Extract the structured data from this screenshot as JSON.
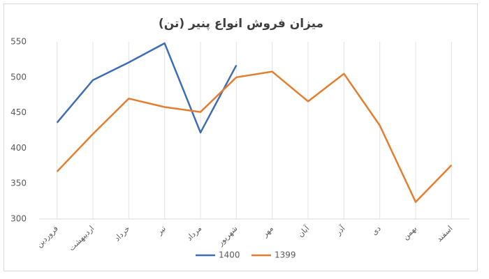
{
  "chart_data": {
    "type": "line",
    "title": "میزان فروش انواع پنیر (تن)",
    "categories": [
      "فروردین",
      "اردیبهشت",
      "خرداد",
      "تیر",
      "مرداد",
      "شهریور",
      "مهر",
      "آبان",
      "آذر",
      "دی",
      "بهمن",
      "اسفند"
    ],
    "series": [
      {
        "name": "1400",
        "color": "#3f6db3",
        "values": [
          436,
          496,
          521,
          548,
          422,
          517,
          null,
          null,
          null,
          null,
          null,
          null
        ]
      },
      {
        "name": "1399",
        "color": "#e57d2f",
        "values": [
          367,
          420,
          470,
          458,
          451,
          500,
          508,
          466,
          505,
          432,
          324,
          376
        ]
      }
    ],
    "ylim": [
      300,
      550
    ],
    "yticks": [
      300,
      350,
      400,
      450,
      500,
      550
    ],
    "grid": true,
    "legend": "bottom"
  }
}
